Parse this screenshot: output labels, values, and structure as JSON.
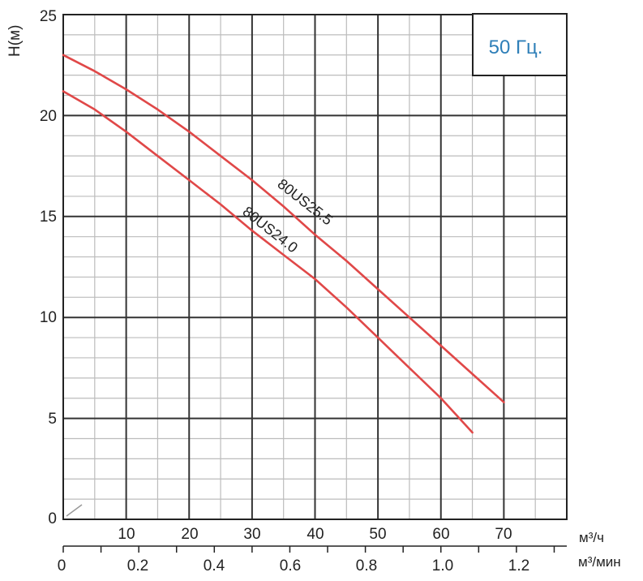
{
  "chart_data": {
    "type": "line",
    "ylabel": "H(м)",
    "x_unit_top": "м³/ч",
    "x_unit_bottom": "м³/мин",
    "annotation": "50 Гц.",
    "xlim": [
      0,
      80
    ],
    "ylim": [
      0,
      25
    ],
    "x_ticks_top": [
      "10",
      "20",
      "30",
      "40",
      "50",
      "60",
      "70"
    ],
    "x_ticks_bottom": [
      "0",
      "0.2",
      "0.4",
      "0.6",
      "0.8",
      "1.0",
      "1.2"
    ],
    "y_ticks": [
      "0",
      "5",
      "10",
      "15",
      "20",
      "25"
    ],
    "grid": true,
    "series": [
      {
        "name": "80US25.5",
        "color": "#e04848",
        "x": [
          0,
          5,
          10,
          15,
          20,
          25,
          30,
          35,
          40,
          45,
          50,
          55,
          60,
          65,
          70
        ],
        "y": [
          23.0,
          22.2,
          21.3,
          20.3,
          19.2,
          18.0,
          16.8,
          15.5,
          14.1,
          12.8,
          11.4,
          10.0,
          8.6,
          7.2,
          5.8
        ]
      },
      {
        "name": "80US24.0",
        "color": "#e04848",
        "x": [
          0,
          5,
          10,
          15,
          20,
          25,
          30,
          35,
          40,
          45,
          50,
          55,
          60,
          65
        ],
        "y": [
          21.2,
          20.3,
          19.2,
          18.0,
          16.8,
          15.6,
          14.3,
          13.1,
          11.9,
          10.5,
          9.0,
          7.5,
          6.0,
          4.3
        ]
      }
    ]
  },
  "colors": {
    "axis": "#222222",
    "major_grid": "#333333",
    "minor_grid": "#bcbcbc",
    "freq_text": "#2e7fb8"
  }
}
